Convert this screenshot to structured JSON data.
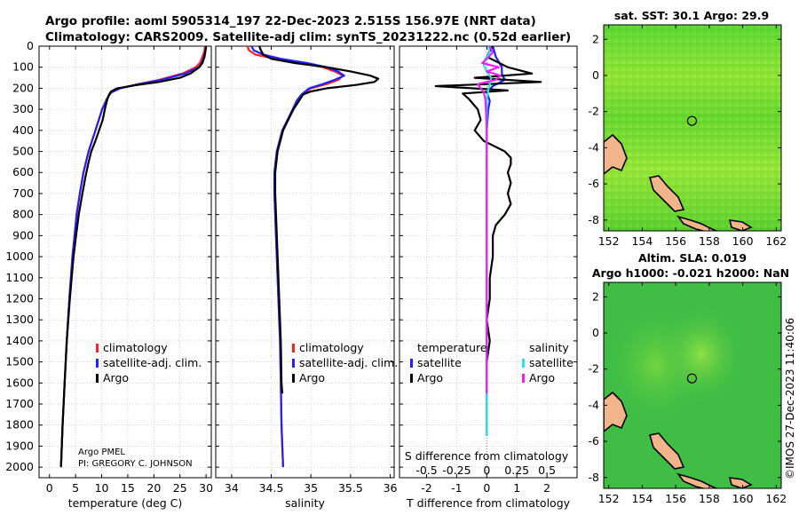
{
  "header": {
    "line1": "Argo profile: aoml 5905314_197 22-Dec-2023 2.515S 156.97E (NRT data)",
    "line2": "Climatology: CARS2009. Satellite-adj clim: synTS_20231222.nc (0.52d earlier)"
  },
  "side_stamp": "©IMOS 27-Dec-2023 11:40:06",
  "colors": {
    "climatology": "#ff2020",
    "satellite_adj": "#2020ff",
    "argo": "#000000",
    "sal_satellite": "#22e4f0",
    "sal_argo": "#f020f0",
    "grid": "#b8b8b8"
  },
  "depth_axis": {
    "ylim": [
      0,
      2050
    ],
    "ticks": [
      0,
      100,
      200,
      300,
      400,
      500,
      600,
      700,
      800,
      900,
      1000,
      1100,
      1200,
      1300,
      1400,
      1500,
      1600,
      1700,
      1800,
      1900,
      2000
    ]
  },
  "chart_data": [
    {
      "type": "line",
      "id": "temperature",
      "xlabel": "temperature (deg C)",
      "xlim": [
        -2,
        31
      ],
      "xticks": [
        0,
        5,
        10,
        15,
        20,
        25,
        30
      ],
      "legend": [
        "climatology",
        "satellite-adj. clim.",
        "Argo"
      ],
      "annotation": [
        "Argo PMEL",
        "PI: GREGORY C. JOHNSON"
      ],
      "series": [
        {
          "name": "climatology",
          "color": "#ff2020",
          "depth": [
            0,
            20,
            50,
            80,
            100,
            130,
            160,
            180,
            200,
            220,
            250,
            300,
            400,
            500,
            600,
            700,
            800,
            900,
            1000,
            1200,
            1400,
            1600,
            1800,
            2000
          ],
          "values": [
            29.8,
            29.7,
            29.3,
            28.8,
            28.0,
            25.5,
            21.0,
            17.0,
            13.5,
            11.8,
            11.0,
            10.1,
            8.8,
            7.5,
            6.5,
            5.8,
            5.2,
            4.8,
            4.4,
            3.8,
            3.3,
            2.9,
            2.5,
            2.2
          ]
        },
        {
          "name": "satellite-adj. clim.",
          "color": "#2020ff",
          "depth": [
            0,
            20,
            50,
            80,
            100,
            130,
            160,
            180,
            200,
            220,
            250,
            300,
            400,
            500,
            600,
            700,
            800,
            900,
            1000,
            1200,
            1400,
            1600,
            1800,
            2000
          ],
          "values": [
            30.0,
            29.9,
            29.6,
            29.2,
            28.6,
            26.0,
            21.5,
            17.2,
            13.6,
            11.8,
            11.0,
            10.1,
            8.8,
            7.5,
            6.5,
            5.8,
            5.2,
            4.8,
            4.4,
            3.8,
            3.3,
            2.9,
            2.5,
            2.2
          ]
        },
        {
          "name": "Argo",
          "color": "#000000",
          "depth": [
            0,
            20,
            50,
            80,
            100,
            130,
            150,
            170,
            185,
            200,
            215,
            230,
            260,
            300,
            350,
            400,
            450,
            500,
            560,
            620,
            700,
            800,
            900,
            1000,
            1200,
            1400,
            1600,
            1800,
            2000
          ],
          "values": [
            30.0,
            29.9,
            29.7,
            29.3,
            28.7,
            27.0,
            25.0,
            21.0,
            16.5,
            13.0,
            11.8,
            11.4,
            11.0,
            10.6,
            10.2,
            9.5,
            8.8,
            8.0,
            7.4,
            6.9,
            6.3,
            5.6,
            5.1,
            4.6,
            3.9,
            3.3,
            2.9,
            2.5,
            2.2
          ]
        }
      ]
    },
    {
      "type": "line",
      "id": "salinity",
      "xlabel": "salinity",
      "xlim": [
        33.8,
        36.05
      ],
      "xticks": [
        34,
        34.5,
        35,
        35.5,
        36
      ],
      "xticklabels": [
        "34",
        "34.5",
        "35",
        "35.5",
        "36"
      ],
      "legend": [
        "climatology",
        "satellite-adj. clim.",
        "Argo"
      ],
      "series": [
        {
          "name": "climatology",
          "color": "#ff2020",
          "depth": [
            0,
            20,
            40,
            60,
            80,
            100,
            120,
            140,
            160,
            180,
            200,
            230,
            260,
            300,
            400,
            500,
            600,
            700,
            800,
            900,
            1000,
            1200,
            1400,
            1600,
            1800,
            2000
          ],
          "values": [
            34.2,
            34.22,
            34.3,
            34.55,
            34.9,
            35.15,
            35.3,
            35.4,
            35.35,
            35.2,
            35.0,
            34.9,
            34.83,
            34.78,
            34.64,
            34.57,
            34.54,
            34.54,
            34.55,
            34.56,
            34.57,
            34.59,
            34.61,
            34.62,
            34.63,
            34.65
          ]
        },
        {
          "name": "satellite-adj. clim.",
          "color": "#2020ff",
          "depth": [
            0,
            20,
            40,
            60,
            80,
            100,
            120,
            140,
            160,
            180,
            200,
            230,
            260,
            300,
            400,
            500,
            600,
            700,
            800,
            900,
            1000,
            1200,
            1400,
            1600,
            1800,
            2000
          ],
          "values": [
            34.25,
            34.28,
            34.4,
            34.62,
            34.95,
            35.2,
            35.34,
            35.42,
            35.3,
            35.15,
            34.98,
            34.88,
            34.82,
            34.77,
            34.64,
            34.57,
            34.54,
            34.54,
            34.55,
            34.56,
            34.57,
            34.59,
            34.61,
            34.62,
            34.63,
            34.65
          ]
        },
        {
          "name": "Argo",
          "color": "#000000",
          "depth": [
            0,
            20,
            40,
            60,
            80,
            100,
            120,
            140,
            155,
            170,
            185,
            200,
            215,
            230,
            260,
            300,
            400,
            500,
            600,
            700,
            800,
            900,
            1000,
            1200,
            1400,
            1600,
            1650
          ],
          "values": [
            34.35,
            34.37,
            34.4,
            34.5,
            34.8,
            35.2,
            35.5,
            35.75,
            35.85,
            35.8,
            35.55,
            35.2,
            35.0,
            34.9,
            34.85,
            34.78,
            34.65,
            34.58,
            34.55,
            34.55,
            34.56,
            34.57,
            34.58,
            34.6,
            34.62,
            34.63,
            34.64
          ]
        }
      ]
    },
    {
      "type": "line",
      "id": "difference",
      "xlabel": "T difference from climatology",
      "xlabel_top": "S difference from climatology",
      "xlim": [
        -2.9,
        3.0
      ],
      "xticks": [
        -2,
        -1,
        0,
        1,
        2
      ],
      "s_ticks": [
        -0.5,
        -0.25,
        0,
        0.25,
        0.5
      ],
      "s_ticklabels": [
        "-0.5",
        "-0.25",
        "0",
        "0.25",
        "0.5"
      ],
      "legend_temperature": [
        "temperature",
        "satellite",
        "Argo"
      ],
      "legend_salinity": [
        "salinity",
        "satellite",
        "Argo"
      ],
      "series": [
        {
          "name": "T satellite",
          "color": "#2020ff",
          "depth": [
            0,
            50,
            100,
            130,
            160,
            190,
            220,
            260,
            300,
            400,
            500,
            700,
            1000,
            1200,
            1500,
            1700,
            1850
          ],
          "values": [
            0.2,
            0.3,
            0.5,
            0.5,
            0.6,
            0.2,
            0.0,
            0.1,
            0.05,
            0.0,
            0.0,
            0.0,
            0.0,
            0.0,
            0.0,
            0.0,
            0.0
          ]
        },
        {
          "name": "T Argo",
          "color": "#000000",
          "depth": [
            0,
            50,
            100,
            130,
            150,
            170,
            190,
            200,
            210,
            225,
            250,
            300,
            350,
            400,
            450,
            500,
            530,
            560,
            600,
            650,
            700,
            750,
            800,
            850,
            900,
            1000,
            1100,
            1200,
            1300,
            1400,
            1500,
            1600,
            1650
          ],
          "values": [
            0.2,
            0.0,
            0.7,
            1.5,
            -0.4,
            1.8,
            -1.7,
            -0.5,
            0.7,
            -0.8,
            -0.6,
            -0.3,
            -0.2,
            -0.4,
            -0.1,
            0.6,
            0.8,
            0.8,
            0.7,
            0.8,
            0.7,
            0.8,
            0.6,
            0.3,
            0.2,
            0.2,
            0.1,
            0.1,
            0.0,
            0.1,
            0.0,
            0.0,
            0.0
          ]
        },
        {
          "name": "S satellite",
          "color": "#22e4f0",
          "depth": [
            0,
            30,
            60,
            90,
            120,
            150,
            180,
            210,
            250,
            300,
            400,
            500,
            700,
            1000,
            1200,
            1500,
            1700,
            1850
          ],
          "values": [
            0.05,
            0.1,
            -0.05,
            -0.1,
            0.0,
            0.15,
            0.1,
            0.05,
            0.0,
            0.0,
            0.0,
            0.0,
            0.0,
            0.0,
            0.0,
            0.0,
            0.0,
            0.0
          ]
        },
        {
          "name": "S Argo",
          "color": "#f020f0",
          "depth": [
            0,
            30,
            60,
            80,
            100,
            120,
            140,
            160,
            180,
            200,
            220,
            250,
            300,
            400,
            500,
            700,
            1000,
            1200,
            1400,
            1600,
            1650
          ],
          "values": [
            0.1,
            0.2,
            0.0,
            -0.15,
            0.4,
            0.0,
            0.45,
            0.3,
            -0.3,
            -0.2,
            -0.1,
            -0.05,
            -0.03,
            0.0,
            0.0,
            0.0,
            0.0,
            0.0,
            0.0,
            0.0,
            0.0
          ]
        }
      ]
    },
    {
      "type": "heatmap",
      "id": "sst_map",
      "title": "sat. SST: 30.1 Argo: 29.9",
      "xticks": [
        152,
        154,
        156,
        158,
        160,
        162
      ],
      "yticks": [
        2,
        0,
        -2,
        -4,
        -6,
        -8
      ],
      "xlim": [
        151.7,
        162.3
      ],
      "ylim": [
        -8.6,
        2.8
      ],
      "argo_position": {
        "lon": 156.97,
        "lat": -2.515
      }
    },
    {
      "type": "heatmap",
      "id": "sla_map",
      "title": "Altim. SLA: 0.019",
      "subtitle": "Argo h1000: -0.021 h2000: NaN",
      "xticks": [
        152,
        154,
        156,
        158,
        160,
        162
      ],
      "yticks": [
        2,
        0,
        -2,
        -4,
        -6,
        -8
      ],
      "xlim": [
        151.7,
        162.3
      ],
      "ylim": [
        -8.6,
        2.8
      ],
      "argo_position": {
        "lon": 156.97,
        "lat": -2.515
      }
    }
  ]
}
